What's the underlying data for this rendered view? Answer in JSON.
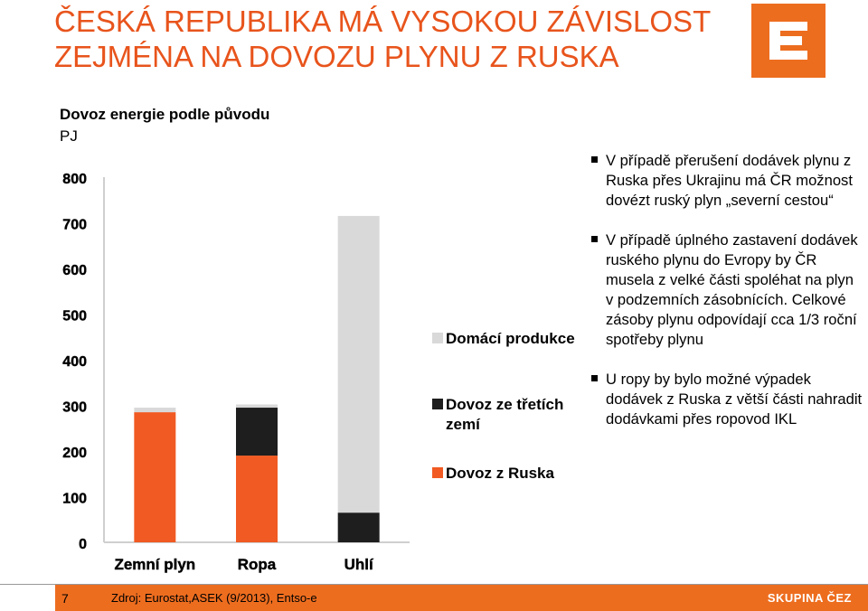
{
  "page": {
    "title": "ČESKÁ REPUBLIKA MÁ VYSOKOU ZÁVISLOST ZEJMÉNA NA DOVOZU PLYNU Z RUSKA",
    "bullets": [
      "V případě přerušení dodávek plynu z Ruska přes Ukrajinu má ČR možnost dovézt ruský plyn „severní cestou“",
      "V případě úplného zastavení dodávek ruského plynu do Evropy by ČR musela z velké části spoléhat na plyn v podzemních zásobnících. Celkové zásoby plynu odpovídají cca 1/3 roční spotřeby plynu",
      "U ropy by bylo možné výpadek dodávek z Ruska z větší části nahradit dodávkami přes ropovod IKL"
    ],
    "footer": {
      "page_number": "7",
      "source": "Zdroj: Eurostat,ASEK (9/2013), Entso-e",
      "brand": "SKUPINA ČEZ"
    }
  },
  "colors": {
    "accent": "#e8541c",
    "russia": "#f15a22",
    "third": "#1e1e1e",
    "domestic": "#d9d9d9",
    "footer": "#ed6d1f"
  },
  "chart_data": {
    "type": "bar",
    "stacked": true,
    "title": "Dovoz energie podle původu",
    "ylabel": "PJ",
    "categories": [
      "Zemní plyn",
      "Ropa",
      "Uhlí"
    ],
    "ylim": [
      0,
      800
    ],
    "yticks": [
      0,
      100,
      200,
      300,
      400,
      500,
      600,
      700,
      800
    ],
    "series": [
      {
        "name": "Dovoz z Ruska",
        "color": "#f15a22",
        "values": [
          285,
          190,
          0
        ]
      },
      {
        "name": "Dovoz ze třetích zemí",
        "color": "#1e1e1e",
        "values": [
          0,
          105,
          65
        ]
      },
      {
        "name": "Domácí produkce",
        "color": "#d9d9d9",
        "values": [
          10,
          7,
          650
        ]
      }
    ],
    "legend_order": [
      2,
      1,
      0
    ],
    "legend_position": "right",
    "grid": false
  }
}
